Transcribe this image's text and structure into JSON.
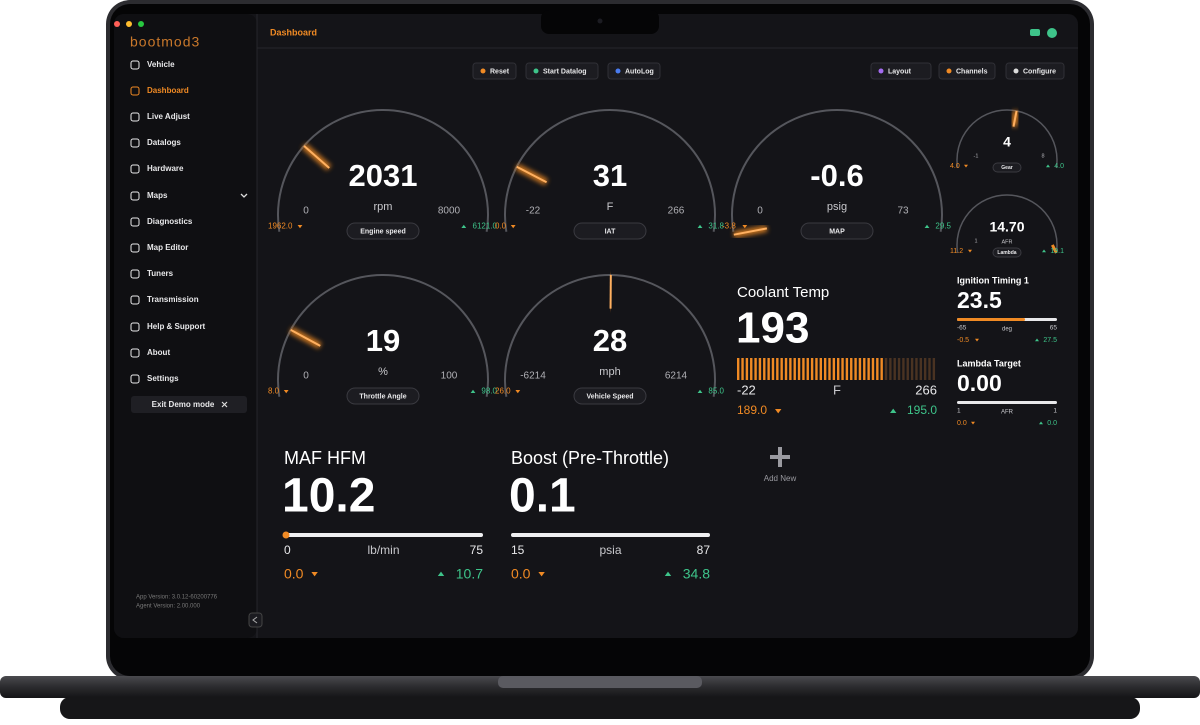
{
  "window": {
    "brand": "bootmod3",
    "page_title": "Dashboard"
  },
  "sidebar": {
    "items": [
      "Vehicle",
      "Dashboard",
      "Live Adjust",
      "Datalogs",
      "Hardware",
      "Maps",
      "Diagnostics",
      "Map Editor",
      "Tuners",
      "Transmission",
      "Help & Support",
      "About",
      "Settings"
    ],
    "active_item": 1,
    "exit_button": "Exit Demo mode",
    "app_version": "App Version: 3.0.12-60200776",
    "agent_version": "Agent Version: 2.00.000"
  },
  "toolbar": {
    "left": [
      "Reset",
      "Start Datalog",
      "AutoLog"
    ],
    "right": [
      "Layout",
      "Channels",
      "Configure"
    ]
  },
  "gauges": [
    {
      "name": "Engine speed",
      "value": 2031,
      "unit": "rpm",
      "min": 0,
      "max": 8000,
      "low": "1962.0",
      "high": "6121.0"
    },
    {
      "name": "IAT",
      "value": 31,
      "unit": "F",
      "min": -22,
      "max": 266,
      "low": "0.0",
      "high": "31.8"
    },
    {
      "name": "MAP",
      "value": -0.6,
      "unit": "psig",
      "min": 0,
      "max": 73,
      "low": "-3.8",
      "high": "29.5"
    },
    {
      "name": "Throttle Angle",
      "value": 19,
      "unit": "%",
      "min": 0,
      "max": 100,
      "low": "8.0",
      "high": "98.0"
    },
    {
      "name": "Vehicle Speed",
      "value": 28,
      "unit": "mph",
      "min": -6214,
      "max": 6214,
      "low": "26.0",
      "high": "85.0"
    },
    {
      "name": "Gear",
      "value": 4,
      "min": -1,
      "max": 8,
      "low": "4.0",
      "high": "4.0"
    },
    {
      "name": "Lambda",
      "value": "14.70",
      "unit": "AFR",
      "min": 1,
      "low": "11.2",
      "high": "19.1"
    }
  ],
  "bar_widgets": [
    {
      "name": "Coolant Temp",
      "value": 193,
      "unit": "F",
      "min": -22,
      "max": 266,
      "low": "189.0",
      "high": "195.0"
    }
  ],
  "small_widgets": [
    {
      "name": "Ignition Timing 1",
      "value": 23.5,
      "unit": "deg",
      "min": -65,
      "max": 65,
      "low": "-0.5",
      "high": "27.5"
    },
    {
      "name": "Lambda Target",
      "value": "0.00",
      "unit": "AFR",
      "min": 1,
      "max": 1,
      "low": "0.0",
      "high": "0.0"
    }
  ],
  "linear_widgets": [
    {
      "name": "MAF HFM",
      "value": 10.2,
      "unit": "lb/min",
      "min": 0,
      "max": 75,
      "low": "0.0",
      "high": "10.7"
    },
    {
      "name": "Boost (Pre-Throttle)",
      "value": 0.1,
      "unit": "psia",
      "min": 15,
      "max": 87,
      "low": "0.0",
      "high": "34.8"
    }
  ],
  "add_new": "Add New"
}
